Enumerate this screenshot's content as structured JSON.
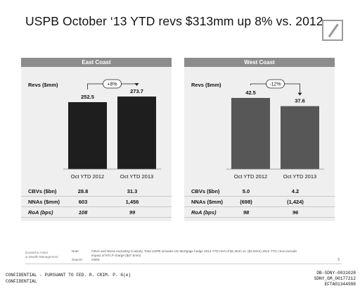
{
  "slide": {
    "title": "USPB October ‘13 YTD revs $313mm up 8% vs. 2012"
  },
  "chart_data": [
    {
      "type": "bar",
      "title": "East Coast",
      "ylabel": "Revs ($mm)",
      "categories": [
        "Oct YTD 2012",
        "Oct YTD 2013"
      ],
      "values": [
        252.5,
        273.7
      ],
      "value_labels": [
        "252.5",
        "273.7"
      ],
      "bar_color": "#1e1e1e",
      "change_label": "+8%",
      "grid": false,
      "rows": [
        {
          "label": "CBVs ($bn)",
          "values": [
            "28.8",
            "31.3"
          ],
          "italic": false
        },
        {
          "label": "NNAs ($mm)",
          "values": [
            "603",
            "1,456"
          ],
          "italic": false
        },
        {
          "label": "RoA (bps)",
          "values": [
            "108",
            "99"
          ],
          "italic": true
        }
      ]
    },
    {
      "type": "bar",
      "title": "West Coast",
      "ylabel": "Revs ($mm)",
      "categories": [
        "Oct YTD 2012",
        "Oct YTD 2013"
      ],
      "values": [
        42.5,
        37.6
      ],
      "value_labels": [
        "42.5",
        "37.6"
      ],
      "bar_color": "#575757",
      "change_label": "-12%",
      "grid": false,
      "rows": [
        {
          "label": "CBVs ($bn)",
          "values": [
            "5.0",
            "4.2"
          ],
          "italic": false
        },
        {
          "label": "NNAs ($mm)",
          "values": [
            "(698)",
            "(1,424)"
          ],
          "italic": false
        },
        {
          "label": "RoA (bps)",
          "values": [
            "98",
            "96"
          ],
          "italic": true
        }
      ]
    }
  ],
  "footer": {
    "brand_line1": "Deutsche Asset",
    "brand_line2": "& Wealth Management",
    "note_label": "Note:",
    "note_line1": "CBVs and NNAs excluding Custody. Total USPB includes US Mortgage hedge 2013 YTD revs of $1.3mm vs. ($4.6mm) 2012 YTD; revs exclude",
    "note_line2": "impact of NTLP charge ($27.6mm)",
    "source_label": "Source:",
    "source_text": "GMIS",
    "page_number": "3"
  },
  "stamps": {
    "left_line1": "CONFIDENTIAL - PURSUANT TO FED. R. CRIM. P. 6(e)",
    "left_line2": "CONFIDENTIAL",
    "right_line1": "DB-SDNY-0031028",
    "right_line2": "SDNY_GM_00177212",
    "right_line3": "EFTA01344988"
  }
}
